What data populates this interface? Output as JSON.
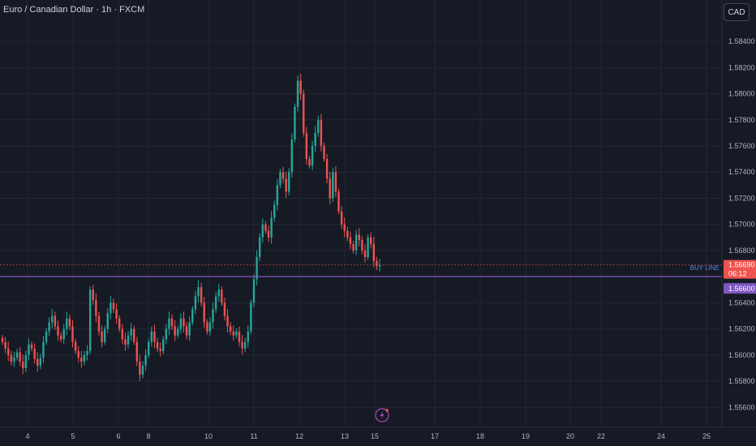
{
  "header": {
    "symbol_title": "Euro / Canadian Dollar · 1h · FXCM",
    "currency_button": "CAD"
  },
  "colors": {
    "up": "#26a69a",
    "down": "#ef5350",
    "buy_line": "#7e57c2",
    "price_line": "#ef5350",
    "background": "#161a25",
    "grid": "#232733"
  },
  "icons": {
    "lightning": "lightning-bolt-icon"
  },
  "chart_data": {
    "type": "candlestick",
    "y_axis": {
      "ticks": [
        "1.58400",
        "1.58200",
        "1.58000",
        "1.57800",
        "1.57600",
        "1.57400",
        "1.57200",
        "1.57000",
        "1.56800",
        "1.56400",
        "1.56200",
        "1.56000",
        "1.55800",
        "1.55600"
      ],
      "range": [
        1.5549,
        1.5868
      ]
    },
    "x_axis": {
      "ticks": [
        "4",
        "5",
        "6",
        "8",
        "10",
        "11",
        "12",
        "13",
        "15",
        "17",
        "18",
        "19",
        "20",
        "22",
        "24",
        "25"
      ]
    },
    "grid": true,
    "buy_line": {
      "label": "BUY LINE",
      "price": 1.566,
      "price_label": "1.56600"
    },
    "last_price": {
      "price": 1.5669,
      "price_label": "1.56690",
      "countdown": "06:12"
    },
    "closes": [
      1.561,
      1.5605,
      1.56,
      1.5595,
      1.5598,
      1.5602,
      1.5595,
      1.559,
      1.56,
      1.5608,
      1.5605,
      1.5597,
      1.5592,
      1.5598,
      1.561,
      1.5618,
      1.5625,
      1.563,
      1.5622,
      1.5615,
      1.5612,
      1.562,
      1.5628,
      1.5622,
      1.561,
      1.5603,
      1.5598,
      1.5595,
      1.56,
      1.5603,
      1.565,
      1.5642,
      1.563,
      1.5618,
      1.561,
      1.562,
      1.5632,
      1.564,
      1.5635,
      1.5628,
      1.562,
      1.5612,
      1.5608,
      1.5615,
      1.562,
      1.561,
      1.5595,
      1.5585,
      1.5592,
      1.56,
      1.561,
      1.5618,
      1.561,
      1.5605,
      1.5603,
      1.5612,
      1.562,
      1.5628,
      1.5622,
      1.5615,
      1.562,
      1.5628,
      1.5622,
      1.5615,
      1.5625,
      1.5635,
      1.5645,
      1.5652,
      1.564,
      1.5625,
      1.5618,
      1.5625,
      1.5635,
      1.5645,
      1.565,
      1.564,
      1.563,
      1.5622,
      1.5618,
      1.5615,
      1.5618,
      1.561,
      1.5605,
      1.561,
      1.5618,
      1.564,
      1.5658,
      1.5675,
      1.569,
      1.57,
      1.5695,
      1.569,
      1.5705,
      1.5715,
      1.573,
      1.574,
      1.5735,
      1.5725,
      1.574,
      1.5765,
      1.579,
      1.581,
      1.58,
      1.577,
      1.575,
      1.5745,
      1.576,
      1.577,
      1.578,
      1.576,
      1.575,
      1.5735,
      1.572,
      1.574,
      1.5725,
      1.571,
      1.57,
      1.5695,
      1.569,
      1.5685,
      1.568,
      1.5692,
      1.5688,
      1.568,
      1.5675,
      1.569,
      1.5685,
      1.5672,
      1.5668,
      1.5669
    ]
  }
}
